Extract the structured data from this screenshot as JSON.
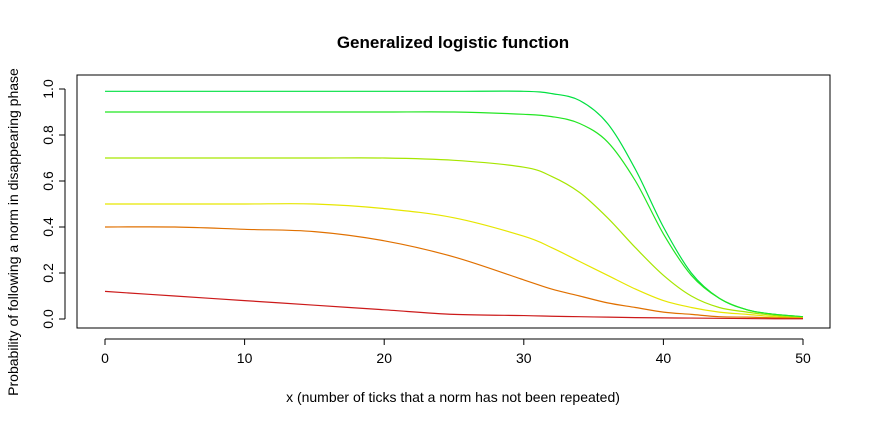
{
  "chart_data": {
    "type": "line",
    "title": "Generalized logistic function",
    "xlabel": "x (number of ticks that a norm has not been repeated)",
    "ylabel": "Probability of following a norm in disappearing phase",
    "xlim": [
      0,
      50
    ],
    "ylim": [
      0,
      1
    ],
    "x_ticks": [
      0,
      10,
      20,
      30,
      40,
      50
    ],
    "y_ticks": [
      "0.0",
      "0.2",
      "0.4",
      "0.6",
      "0.8",
      "1.0"
    ],
    "grid": false,
    "legend": "none",
    "x": [
      0,
      5,
      10,
      15,
      20,
      25,
      30,
      32,
      34,
      36,
      38,
      40,
      42,
      44,
      46,
      48,
      50
    ],
    "series": [
      {
        "color": "#00e040",
        "values": [
          0.99,
          0.99,
          0.99,
          0.99,
          0.99,
          0.99,
          0.99,
          0.98,
          0.95,
          0.85,
          0.65,
          0.4,
          0.2,
          0.09,
          0.04,
          0.02,
          0.01
        ]
      },
      {
        "color": "#22e622",
        "values": [
          0.9,
          0.9,
          0.9,
          0.9,
          0.9,
          0.9,
          0.89,
          0.88,
          0.85,
          0.77,
          0.6,
          0.37,
          0.19,
          0.09,
          0.04,
          0.02,
          0.01
        ]
      },
      {
        "color": "#a6e600",
        "values": [
          0.7,
          0.7,
          0.7,
          0.7,
          0.7,
          0.69,
          0.66,
          0.62,
          0.55,
          0.44,
          0.31,
          0.19,
          0.1,
          0.05,
          0.03,
          0.015,
          0.005
        ]
      },
      {
        "color": "#e6e600",
        "values": [
          0.5,
          0.5,
          0.5,
          0.5,
          0.48,
          0.44,
          0.36,
          0.31,
          0.25,
          0.19,
          0.13,
          0.08,
          0.05,
          0.03,
          0.02,
          0.01,
          0.005
        ]
      },
      {
        "color": "#e07000",
        "values": [
          0.4,
          0.4,
          0.39,
          0.38,
          0.34,
          0.27,
          0.17,
          0.13,
          0.1,
          0.07,
          0.05,
          0.03,
          0.02,
          0.01,
          0.008,
          0.005,
          0.003
        ]
      },
      {
        "color": "#cc1a1a",
        "values": [
          0.12,
          0.1,
          0.08,
          0.06,
          0.04,
          0.02,
          0.015,
          0.012,
          0.01,
          0.008,
          0.006,
          0.005,
          0.004,
          0.003,
          0.002,
          0.001,
          0.001
        ]
      }
    ]
  }
}
